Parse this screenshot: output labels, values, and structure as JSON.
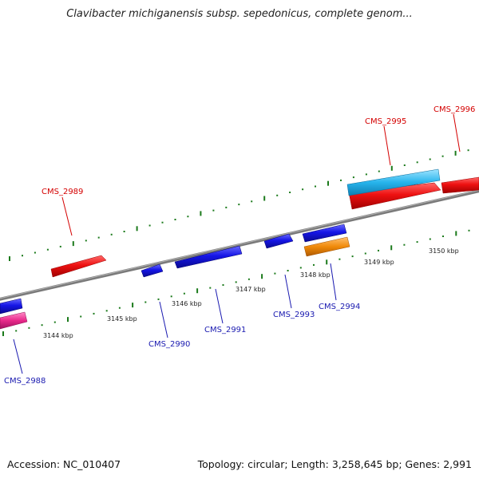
{
  "title": "Clavibacter michiganensis subsp. sepedonicus, complete genom...",
  "footer": {
    "accession": "Accession: NC_010407",
    "summary": "Topology: circular; Length: 3,258,645 bp; Genes: 2,991"
  },
  "colors": {
    "backbone": "#808080",
    "tick": "#1b7a1b",
    "forward_gene": "#e01010",
    "reverse_gene": "#1515e0",
    "cyan_feature": "#27b4ec",
    "orange_feature": "#f08a0a",
    "pink_feature": "#e8288a",
    "forward_label": "#d40000",
    "reverse_label": "#1a1ab0"
  },
  "scale_labels": [
    "3144 kbp",
    "3145 kbp",
    "3146 kbp",
    "3147 kbp",
    "3148 kbp",
    "3149 kbp",
    "3150 kbp"
  ],
  "gene_labels": {
    "cms2988": "CMS_2988",
    "cms2989": "CMS_2989",
    "cms2990": "CMS_2990",
    "cms2991": "CMS_2991",
    "cms2993": "CMS_2993",
    "cms2994": "CMS_2994",
    "cms2995": "CMS_2995",
    "cms2996": "CMS_2996"
  }
}
